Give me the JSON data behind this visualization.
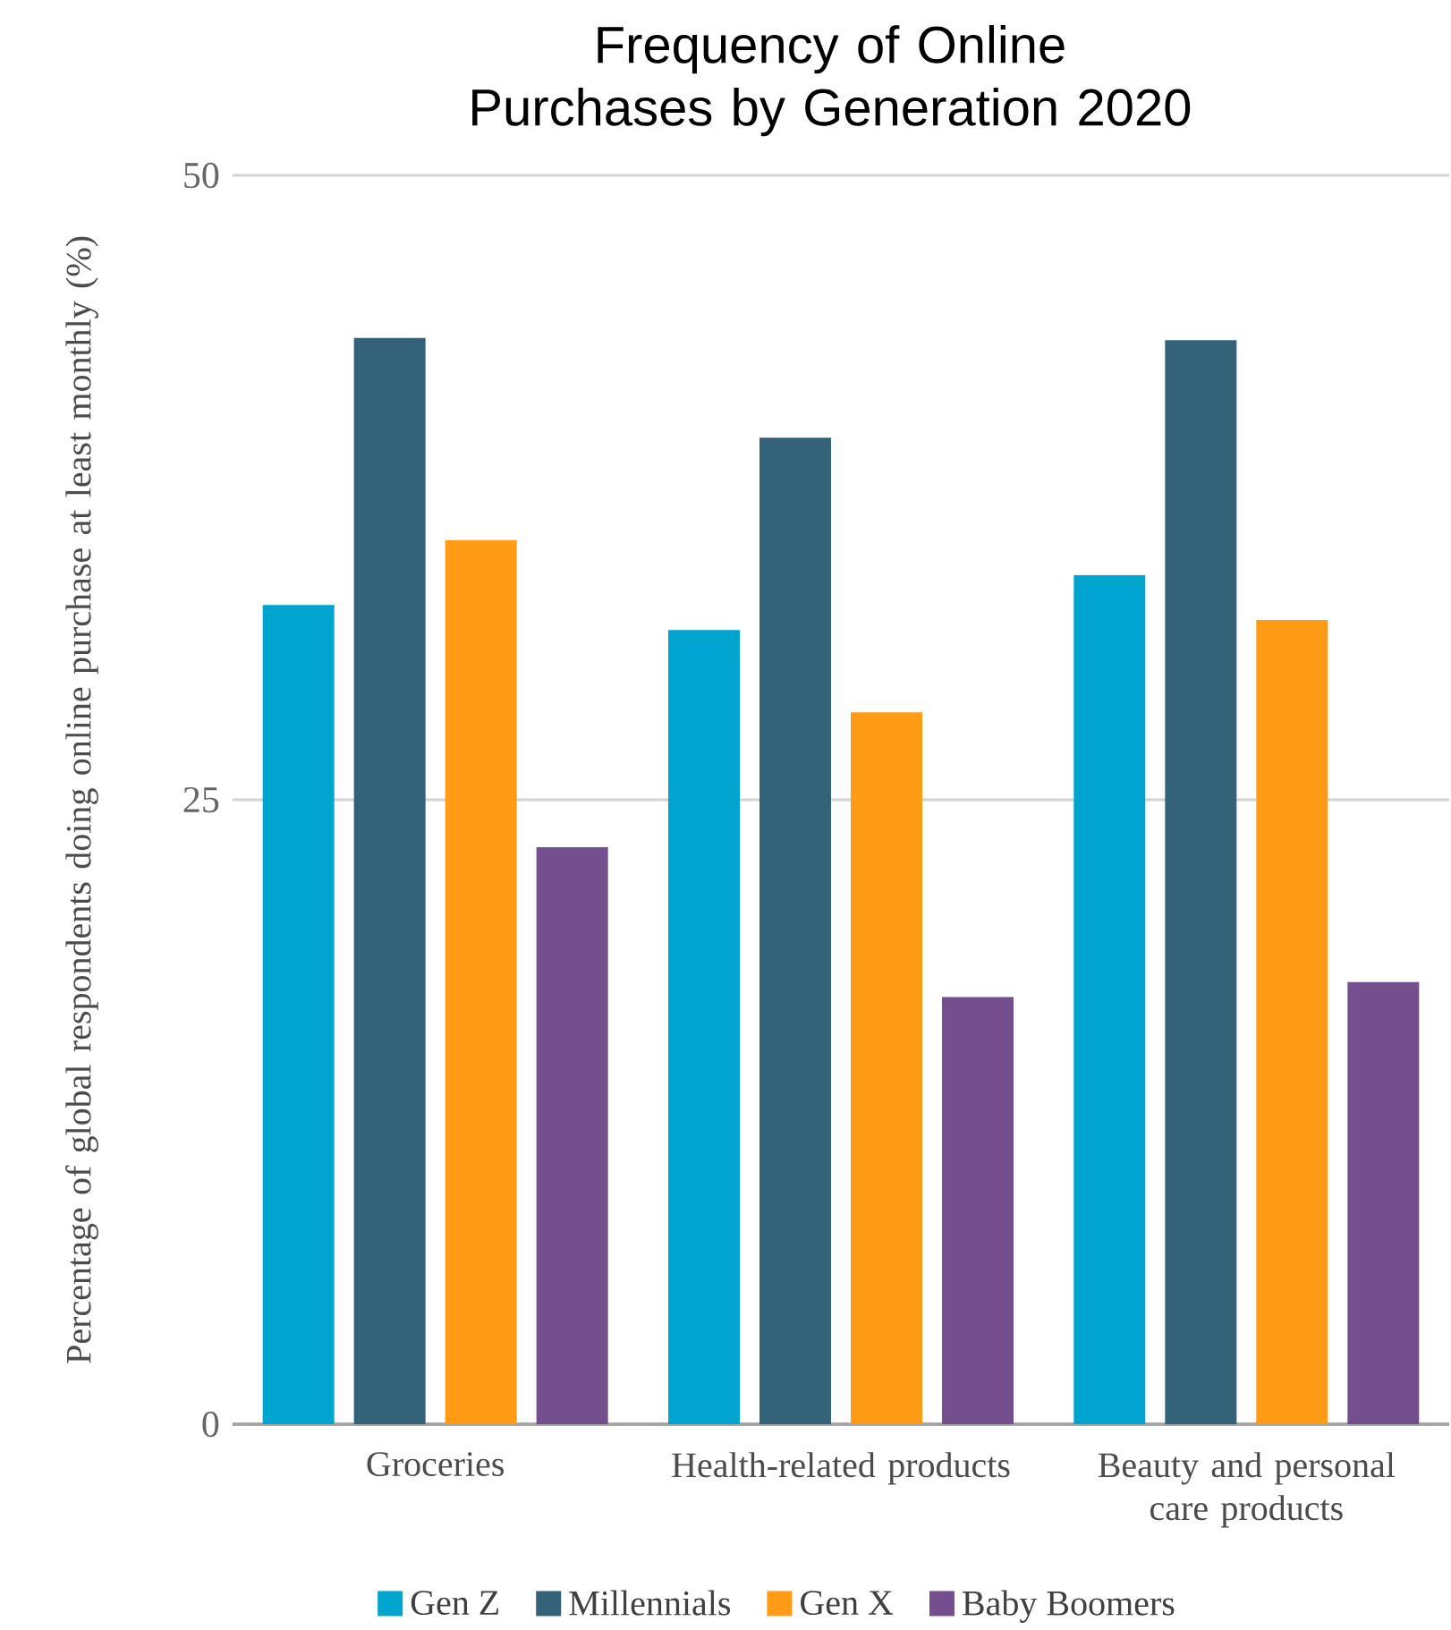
{
  "chart_data": {
    "type": "bar",
    "title": "Frequency of Online Purchases by Generation 2020",
    "ylabel": "Percentage of global respondents doing online purchase at least monthly (%)",
    "categories": [
      "Groceries",
      "Health-related products",
      "Beauty and personal care products"
    ],
    "series": [
      {
        "name": "Gen Z",
        "color": "#00a5cf",
        "values": [
          32.8,
          31.8,
          34.0
        ]
      },
      {
        "name": "Millennials",
        "color": "#346379",
        "values": [
          43.5,
          39.5,
          43.4
        ]
      },
      {
        "name": "Gen X",
        "color": "#ff9b14",
        "values": [
          35.4,
          28.5,
          32.2
        ]
      },
      {
        "name": "Baby Boomers",
        "color": "#734f8d",
        "values": [
          23.1,
          17.1,
          17.7
        ]
      }
    ],
    "ylim": [
      0,
      50
    ],
    "yticks": [
      0,
      25,
      50
    ],
    "grid": "y",
    "legend": "bottom"
  }
}
